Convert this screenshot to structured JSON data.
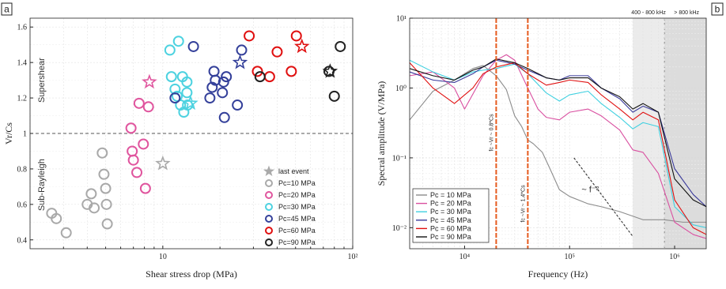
{
  "chart_data": [
    {
      "panel": "a",
      "type": "scatter",
      "xscale": "log",
      "xlim": [
        2,
        100
      ],
      "ylim": [
        0.35,
        1.65
      ],
      "xlabel": "Shear stress drop (MPa)",
      "ylabel": "Vr/Cs",
      "xticks": [
        "10",
        "10²"
      ],
      "yticks": [
        "0.4",
        "0.6",
        "0.8",
        "1",
        "1.2",
        "1.4",
        "1.6"
      ],
      "hline": 1.0,
      "region_labels": [
        "Supershear",
        "Sub-Rayleigh"
      ],
      "grid": true,
      "legend_position": "lower-right",
      "legend_event_label": "last event",
      "colors": {
        "Pc=10 MPa": "#a9a9a9",
        "Pc=20 MPa": "#e0559e",
        "Pc=30 MPa": "#4dd2e0",
        "Pc=45 MPa": "#34409a",
        "Pc=60 MPa": "#e01010",
        "Pc=90 MPa": "#222222"
      },
      "series": [
        {
          "name": "Pc=10 MPa",
          "circles": [
            [
              2.6,
              0.55
            ],
            [
              2.75,
              0.52
            ],
            [
              3.1,
              0.44
            ],
            [
              4.0,
              0.6
            ],
            [
              4.2,
              0.66
            ],
            [
              4.35,
              0.58
            ],
            [
              4.8,
              0.89
            ],
            [
              4.9,
              0.77
            ],
            [
              5.0,
              0.69
            ],
            [
              5.05,
              0.6
            ],
            [
              5.1,
              0.49
            ]
          ],
          "star": [
            10.0,
            0.83
          ]
        },
        {
          "name": "Pc=20 MPa",
          "circles": [
            [
              6.8,
              1.03
            ],
            [
              6.9,
              0.9
            ],
            [
              7.0,
              0.85
            ],
            [
              7.3,
              0.78
            ],
            [
              7.5,
              1.17
            ],
            [
              7.9,
              0.94
            ],
            [
              8.1,
              0.69
            ],
            [
              8.4,
              1.15
            ]
          ],
          "star": [
            8.5,
            1.29
          ]
        },
        {
          "name": "Pc=30 MPa",
          "circles": [
            [
              10.9,
              1.47
            ],
            [
              11.1,
              1.32
            ],
            [
              11.6,
              1.25
            ],
            [
              11.9,
              1.21
            ],
            [
              12.1,
              1.52
            ],
            [
              12.4,
              1.16
            ],
            [
              12.7,
              1.32
            ],
            [
              12.9,
              1.12
            ],
            [
              13.4,
              1.29
            ],
            [
              13.4,
              1.23
            ],
            [
              13.5,
              1.16
            ]
          ],
          "star": [
            14.0,
            1.17
          ]
        },
        {
          "name": "Pc=45 MPa",
          "circles": [
            [
              11.6,
              1.2
            ],
            [
              14.5,
              1.49
            ],
            [
              17.7,
              1.2
            ],
            [
              18.2,
              1.26
            ],
            [
              18.6,
              1.35
            ],
            [
              18.9,
              1.3
            ],
            [
              20.6,
              1.23
            ],
            [
              20.9,
              1.29
            ],
            [
              21.1,
              1.09
            ],
            [
              21.6,
              1.32
            ],
            [
              24.7,
              1.16
            ],
            [
              26.0,
              1.47
            ]
          ],
          "star": [
            25.5,
            1.4
          ]
        },
        {
          "name": "Pc=60 MPa",
          "circles": [
            [
              28.5,
              1.55
            ],
            [
              31.5,
              1.35
            ],
            [
              36.5,
              1.32
            ],
            [
              40.0,
              1.46
            ],
            [
              47.5,
              1.35
            ],
            [
              50.5,
              1.55
            ]
          ],
          "star": [
            54.0,
            1.49
          ]
        },
        {
          "name": "Pc=90 MPa",
          "circles": [
            [
              32.5,
              1.32
            ],
            [
              75.0,
              1.35
            ],
            [
              80.0,
              1.21
            ],
            [
              86.0,
              1.49
            ]
          ],
          "star": [
            76.0,
            1.35
          ]
        }
      ]
    },
    {
      "panel": "b",
      "type": "line",
      "xscale": "log",
      "yscale": "log",
      "xlim": [
        3000,
        2000000
      ],
      "ylim": [
        0.005,
        10
      ],
      "xlabel": "Frequency (Hz)",
      "ylabel": "Specral amplitude (V/MPa)",
      "xticks": [
        "10⁴",
        "10⁵",
        "10⁶"
      ],
      "yticks": [
        "10⁻²",
        "10⁻¹",
        "10⁰",
        "10¹"
      ],
      "vlines": [
        {
          "x": 20000,
          "label": "fc ~Vr ~ 0.8*Cs",
          "color": "#e65a1e"
        },
        {
          "x": 40000,
          "label": "fc ~Vr ~ 1.4*Cs",
          "color": "#e65a1e"
        }
      ],
      "band_labels": [
        "400 - 800 kHz",
        "> 800 kHz"
      ],
      "bands": [
        {
          "from": 400000,
          "to": 800000,
          "color": "#ebebeb"
        },
        {
          "from": 800000,
          "to": 2000000,
          "color": "#dcdcdc"
        }
      ],
      "annotation": "~ f⁻²",
      "grid": true,
      "legend_position": "lower-left",
      "colors": {
        "Pc = 10 MPa": "#8c8c8c",
        "Pc = 20 MPa": "#d94fa0",
        "Pc = 30 MPa": "#3fd0e0",
        "Pc = 45 MPa": "#3a3a9a",
        "Pc = 60 MPa": "#e01010",
        "Pc = 90 MPa": "#111111"
      },
      "series": [
        {
          "name": "Pc = 10 MPa",
          "x": [
            3000,
            5000,
            8000,
            12000,
            15000,
            20000,
            25000,
            30000,
            35000,
            40000,
            45000,
            55000,
            65000,
            80000,
            100000,
            150000,
            200000,
            300000,
            500000,
            800000,
            1200000,
            2000000
          ],
          "y": [
            0.35,
            0.9,
            1.3,
            1.9,
            2.1,
            1.5,
            0.95,
            0.4,
            0.28,
            0.18,
            0.16,
            0.12,
            0.07,
            0.035,
            0.028,
            0.022,
            0.02,
            0.017,
            0.013,
            0.013,
            0.012,
            0.012
          ]
        },
        {
          "name": "Pc = 20 MPa",
          "x": [
            3000,
            5000,
            8000,
            10000,
            15000,
            20000,
            25000,
            30000,
            40000,
            50000,
            60000,
            80000,
            100000,
            150000,
            200000,
            300000,
            400000,
            500000,
            700000,
            1000000,
            1500000,
            2000000
          ],
          "y": [
            1.5,
            1.7,
            1.0,
            0.5,
            1.5,
            2.5,
            3.0,
            2.5,
            1.0,
            0.5,
            0.38,
            0.35,
            0.45,
            0.5,
            0.4,
            0.25,
            0.13,
            0.12,
            0.06,
            0.012,
            0.008,
            0.007
          ]
        },
        {
          "name": "Pc = 30 MPa",
          "x": [
            3000,
            5000,
            8000,
            12000,
            15000,
            20000,
            30000,
            40000,
            60000,
            80000,
            100000,
            150000,
            200000,
            300000,
            400000,
            500000,
            700000,
            1000000,
            1500000,
            2000000
          ],
          "y": [
            2.5,
            1.7,
            1.3,
            1.7,
            1.8,
            1.9,
            2.2,
            1.6,
            0.85,
            0.65,
            0.8,
            0.9,
            0.6,
            0.38,
            0.26,
            0.32,
            0.28,
            0.02,
            0.011,
            0.01
          ]
        },
        {
          "name": "Pc = 45 MPa",
          "x": [
            3000,
            5000,
            8000,
            12000,
            15000,
            20000,
            30000,
            40000,
            60000,
            80000,
            100000,
            150000,
            200000,
            300000,
            400000,
            500000,
            700000,
            1000000,
            1500000,
            2000000
          ],
          "y": [
            1.7,
            1.3,
            1.2,
            1.6,
            2.0,
            2.5,
            2.2,
            1.8,
            1.4,
            1.3,
            1.5,
            1.5,
            1.0,
            0.7,
            0.45,
            0.55,
            0.45,
            0.07,
            0.03,
            0.02
          ]
        },
        {
          "name": "Pc = 60 MPa",
          "x": [
            3000,
            5000,
            8000,
            12000,
            15000,
            20000,
            30000,
            40000,
            60000,
            80000,
            100000,
            150000,
            200000,
            300000,
            400000,
            500000,
            700000,
            1000000,
            1500000,
            2000000
          ],
          "y": [
            2.3,
            1.0,
            0.6,
            1.0,
            1.6,
            2.0,
            2.3,
            1.6,
            1.1,
            1.2,
            1.3,
            1.2,
            0.8,
            0.5,
            0.35,
            0.45,
            0.35,
            0.025,
            0.01,
            0.008
          ]
        },
        {
          "name": "Pc = 90 MPa",
          "x": [
            3000,
            5000,
            8000,
            12000,
            15000,
            20000,
            30000,
            40000,
            60000,
            80000,
            100000,
            150000,
            200000,
            300000,
            400000,
            500000,
            700000,
            1000000,
            1500000,
            2000000
          ],
          "y": [
            1.9,
            1.5,
            1.3,
            1.8,
            2.0,
            2.6,
            2.3,
            1.9,
            1.4,
            1.3,
            1.4,
            1.4,
            1.0,
            0.75,
            0.5,
            0.6,
            0.45,
            0.05,
            0.025,
            0.02
          ]
        }
      ]
    }
  ]
}
